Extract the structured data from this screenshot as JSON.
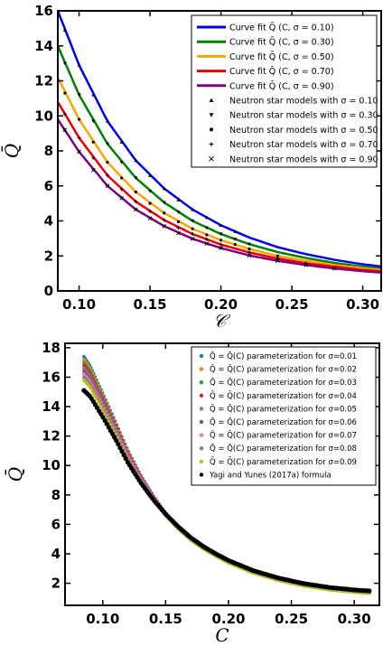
{
  "chart_data": [
    {
      "type": "line",
      "xlabel": "𝒞",
      "ylabel": "Q̄",
      "xlim": [
        0.085,
        0.313
      ],
      "ylim": [
        0,
        16
      ],
      "xticks": [
        "0.10",
        "0.15",
        "0.20",
        "0.25",
        "0.30"
      ],
      "xtick_values": [
        0.1,
        0.15,
        0.2,
        0.25,
        0.3
      ],
      "yticks": [
        "0",
        "2",
        "4",
        "6",
        "8",
        "10",
        "12",
        "14",
        "16"
      ],
      "ytick_values": [
        0,
        2,
        4,
        6,
        8,
        10,
        12,
        14,
        16
      ],
      "legend_position": "top-right",
      "series": [
        {
          "name": "Curve fit Q̄ (C, σ = 0.10)",
          "color": "#0000ee",
          "style": "line",
          "x": [
            0.085,
            0.1,
            0.12,
            0.14,
            0.16,
            0.18,
            0.2,
            0.22,
            0.24,
            0.26,
            0.28,
            0.3,
            0.313
          ],
          "y": [
            16.0,
            12.9,
            9.7,
            7.45,
            5.85,
            4.65,
            3.75,
            3.05,
            2.5,
            2.1,
            1.78,
            1.52,
            1.4
          ]
        },
        {
          "name": "Curve fit Q̄ (C, σ = 0.30)",
          "color": "#008000",
          "style": "line",
          "x": [
            0.085,
            0.1,
            0.12,
            0.14,
            0.16,
            0.18,
            0.2,
            0.22,
            0.24,
            0.26,
            0.28,
            0.3,
            0.313
          ],
          "y": [
            14.0,
            11.2,
            8.4,
            6.45,
            5.05,
            4.0,
            3.25,
            2.67,
            2.22,
            1.88,
            1.6,
            1.38,
            1.28
          ]
        },
        {
          "name": "Curve fit Q̄ (C, σ = 0.50)",
          "color": "#ffa500",
          "style": "line",
          "x": [
            0.085,
            0.1,
            0.12,
            0.14,
            0.16,
            0.18,
            0.2,
            0.22,
            0.24,
            0.26,
            0.28,
            0.3,
            0.313
          ],
          "y": [
            12.2,
            9.8,
            7.35,
            5.65,
            4.45,
            3.55,
            2.9,
            2.4,
            2.0,
            1.72,
            1.48,
            1.3,
            1.2
          ]
        },
        {
          "name": "Curve fit Q̄ (C, σ = 0.70)",
          "color": "#ee0000",
          "style": "line",
          "x": [
            0.085,
            0.1,
            0.12,
            0.14,
            0.16,
            0.18,
            0.2,
            0.22,
            0.24,
            0.26,
            0.28,
            0.3,
            0.313
          ],
          "y": [
            10.8,
            8.75,
            6.6,
            5.1,
            4.05,
            3.25,
            2.65,
            2.2,
            1.85,
            1.58,
            1.38,
            1.2,
            1.12
          ]
        },
        {
          "name": "Curve fit Q̄ (C, σ = 0.90)",
          "color": "#800080",
          "style": "line",
          "x": [
            0.085,
            0.1,
            0.12,
            0.14,
            0.16,
            0.18,
            0.2,
            0.22,
            0.24,
            0.26,
            0.28,
            0.3,
            0.313
          ],
          "y": [
            9.8,
            7.95,
            6.0,
            4.65,
            3.7,
            2.98,
            2.45,
            2.03,
            1.72,
            1.48,
            1.28,
            1.13,
            1.05
          ]
        },
        {
          "name": "Neutron star models with σ = 0.10",
          "color": "#000000",
          "style": "marker",
          "marker": "triangle-up",
          "x": [
            0.09,
            0.1,
            0.11,
            0.12,
            0.13,
            0.14,
            0.15,
            0.16,
            0.17,
            0.18,
            0.19,
            0.2,
            0.21
          ],
          "y": [
            14.9,
            12.9,
            11.2,
            9.7,
            8.5,
            7.45,
            6.6,
            5.85,
            5.2,
            4.65,
            4.2,
            3.75,
            3.4
          ]
        },
        {
          "name": "Neutron star models with σ = 0.30",
          "color": "#000000",
          "style": "marker",
          "marker": "triangle-down",
          "x": [
            0.09,
            0.1,
            0.11,
            0.12,
            0.13,
            0.14,
            0.15,
            0.16,
            0.17,
            0.18,
            0.19,
            0.2,
            0.21,
            0.22
          ],
          "y": [
            13.0,
            11.2,
            9.7,
            8.4,
            7.35,
            6.45,
            5.7,
            5.05,
            4.5,
            4.0,
            3.6,
            3.25,
            2.95,
            2.67
          ]
        },
        {
          "name": "Neutron star models with σ = 0.50",
          "color": "#000000",
          "style": "marker",
          "marker": "circle",
          "x": [
            0.09,
            0.1,
            0.11,
            0.12,
            0.13,
            0.14,
            0.15,
            0.16,
            0.17,
            0.18,
            0.19,
            0.2,
            0.21,
            0.22,
            0.24
          ],
          "y": [
            11.3,
            9.8,
            8.5,
            7.35,
            6.45,
            5.65,
            5.0,
            4.45,
            3.95,
            3.55,
            3.2,
            2.9,
            2.65,
            2.4,
            2.0
          ]
        },
        {
          "name": "Neutron star models with σ = 0.70",
          "color": "#000000",
          "style": "marker",
          "marker": "plus",
          "x": [
            0.09,
            0.1,
            0.11,
            0.12,
            0.13,
            0.14,
            0.15,
            0.16,
            0.17,
            0.18,
            0.19,
            0.2,
            0.22,
            0.24,
            0.26
          ],
          "y": [
            10.1,
            8.75,
            7.6,
            6.6,
            5.8,
            5.1,
            4.55,
            4.05,
            3.6,
            3.25,
            2.95,
            2.65,
            2.2,
            1.85,
            1.58
          ]
        },
        {
          "name": "Neutron star models with σ = 0.90",
          "color": "#000000",
          "style": "marker",
          "marker": "x",
          "x": [
            0.09,
            0.1,
            0.11,
            0.12,
            0.13,
            0.14,
            0.15,
            0.16,
            0.17,
            0.18,
            0.19,
            0.2,
            0.22,
            0.24,
            0.26,
            0.28
          ],
          "y": [
            9.2,
            7.95,
            6.9,
            6.0,
            5.3,
            4.65,
            4.15,
            3.7,
            3.3,
            2.98,
            2.7,
            2.45,
            2.03,
            1.72,
            1.48,
            1.28
          ]
        }
      ]
    },
    {
      "type": "scatter",
      "xlabel": "C",
      "ylabel": "Q̄",
      "xlim": [
        0.07,
        0.32
      ],
      "ylim": [
        0.5,
        18.3
      ],
      "xticks": [
        "0.10",
        "0.15",
        "0.20",
        "0.25",
        "0.30"
      ],
      "xtick_values": [
        0.1,
        0.15,
        0.2,
        0.25,
        0.3
      ],
      "yticks": [
        "2",
        "4",
        "6",
        "8",
        "10",
        "12",
        "14",
        "16",
        "18"
      ],
      "ytick_values": [
        2,
        4,
        6,
        8,
        10,
        12,
        14,
        16,
        18
      ],
      "legend_position": "top-right",
      "series": [
        {
          "name": "Q̄ = Q̄(C) parameterization for σ=0.01",
          "color": "#1f77b4",
          "x_range": [
            0.085,
            0.312
          ],
          "y_start": 17.4,
          "y_end": 1.48
        },
        {
          "name": "Q̄ = Q̄(C) parameterization for σ=0.02",
          "color": "#ff7f0e",
          "x_range": [
            0.085,
            0.312
          ],
          "y_start": 17.2,
          "y_end": 1.47
        },
        {
          "name": "Q̄ = Q̄(C) parameterization for σ=0.03",
          "color": "#2ca02c",
          "x_range": [
            0.085,
            0.312
          ],
          "y_start": 17.0,
          "y_end": 1.46
        },
        {
          "name": "Q̄ = Q̄(C) parameterization for σ=0.04",
          "color": "#d62728",
          "x_range": [
            0.085,
            0.312
          ],
          "y_start": 16.8,
          "y_end": 1.45
        },
        {
          "name": "Q̄ = Q̄(C) parameterization for σ=0.05",
          "color": "#9467bd",
          "x_range": [
            0.085,
            0.312
          ],
          "y_start": 16.6,
          "y_end": 1.44
        },
        {
          "name": "Q̄ = Q̄(C) parameterization for σ=0.06",
          "color": "#8c564b",
          "x_range": [
            0.085,
            0.312
          ],
          "y_start": 16.4,
          "y_end": 1.43
        },
        {
          "name": "Q̄ = Q̄(C) parameterization for σ=0.07",
          "color": "#e377c2",
          "x_range": [
            0.085,
            0.312
          ],
          "y_start": 16.2,
          "y_end": 1.42
        },
        {
          "name": "Q̄ = Q̄(C) parameterization for σ=0.08",
          "color": "#7f7f7f",
          "x_range": [
            0.085,
            0.312
          ],
          "y_start": 16.0,
          "y_end": 1.41
        },
        {
          "name": "Q̄ = Q̄(C) parameterization for σ=0.09",
          "color": "#bcbd22",
          "x_range": [
            0.085,
            0.312
          ],
          "y_start": 15.8,
          "y_end": 1.4
        },
        {
          "name": "Yagi and Yunes (2017a) formula",
          "color": "#000000",
          "x": [
            0.085,
            0.09,
            0.1,
            0.11,
            0.12,
            0.13,
            0.14,
            0.15,
            0.16,
            0.17,
            0.18,
            0.19,
            0.2,
            0.22,
            0.24,
            0.26,
            0.28,
            0.3,
            0.312
          ],
          "y": [
            15.1,
            14.7,
            13.3,
            11.8,
            10.2,
            8.85,
            7.7,
            6.7,
            5.85,
            5.1,
            4.5,
            4.0,
            3.55,
            2.85,
            2.35,
            1.98,
            1.72,
            1.55,
            1.48
          ]
        }
      ]
    }
  ]
}
